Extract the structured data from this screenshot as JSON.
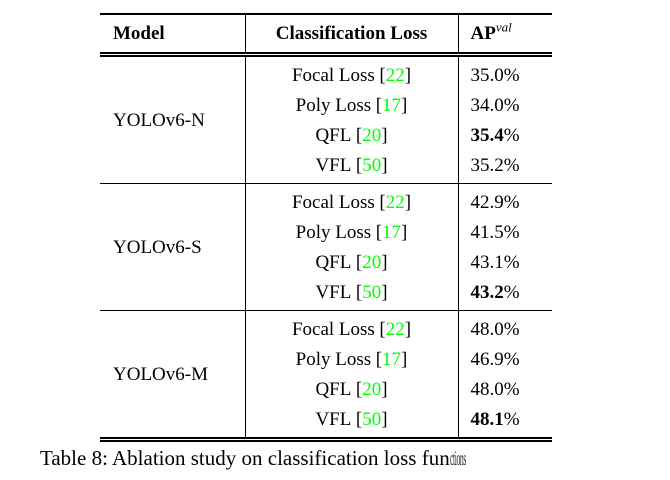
{
  "colors": {
    "cite_green": "#00ff00",
    "text": "#000000",
    "rule": "#000000",
    "background": "#ffffff"
  },
  "table": {
    "header": {
      "model": "Model",
      "loss": "Classification Loss",
      "ap_base": "AP",
      "ap_sup": "val"
    },
    "bracket_open": "[",
    "bracket_close": "]",
    "percent": "%",
    "groups": [
      {
        "model": "YOLOv6-N",
        "rows": [
          {
            "loss": "Focal Loss",
            "cite": "22",
            "ap": "35.0",
            "best": false
          },
          {
            "loss": "Poly Loss",
            "cite": "17",
            "ap": "34.0",
            "best": false
          },
          {
            "loss": "QFL",
            "cite": "20",
            "ap": "35.4",
            "best": true
          },
          {
            "loss": "VFL",
            "cite": "50",
            "ap": "35.2",
            "best": false
          }
        ]
      },
      {
        "model": "YOLOv6-S",
        "rows": [
          {
            "loss": "Focal Loss",
            "cite": "22",
            "ap": "42.9",
            "best": false
          },
          {
            "loss": "Poly Loss",
            "cite": "17",
            "ap": "41.5",
            "best": false
          },
          {
            "loss": "QFL",
            "cite": "20",
            "ap": "43.1",
            "best": false
          },
          {
            "loss": "VFL",
            "cite": "50",
            "ap": "43.2",
            "best": true
          }
        ]
      },
      {
        "model": "YOLOv6-M",
        "rows": [
          {
            "loss": "Focal Loss",
            "cite": "22",
            "ap": "48.0",
            "best": false
          },
          {
            "loss": "Poly Loss",
            "cite": "17",
            "ap": "46.9",
            "best": false
          },
          {
            "loss": "QFL",
            "cite": "20",
            "ap": "48.0",
            "best": false
          },
          {
            "loss": "VFL",
            "cite": "50",
            "ap": "48.1",
            "best": true
          }
        ]
      }
    ]
  },
  "caption": {
    "main": "Table 8: Ablation study on classification loss fun",
    "tail": "ctions"
  }
}
